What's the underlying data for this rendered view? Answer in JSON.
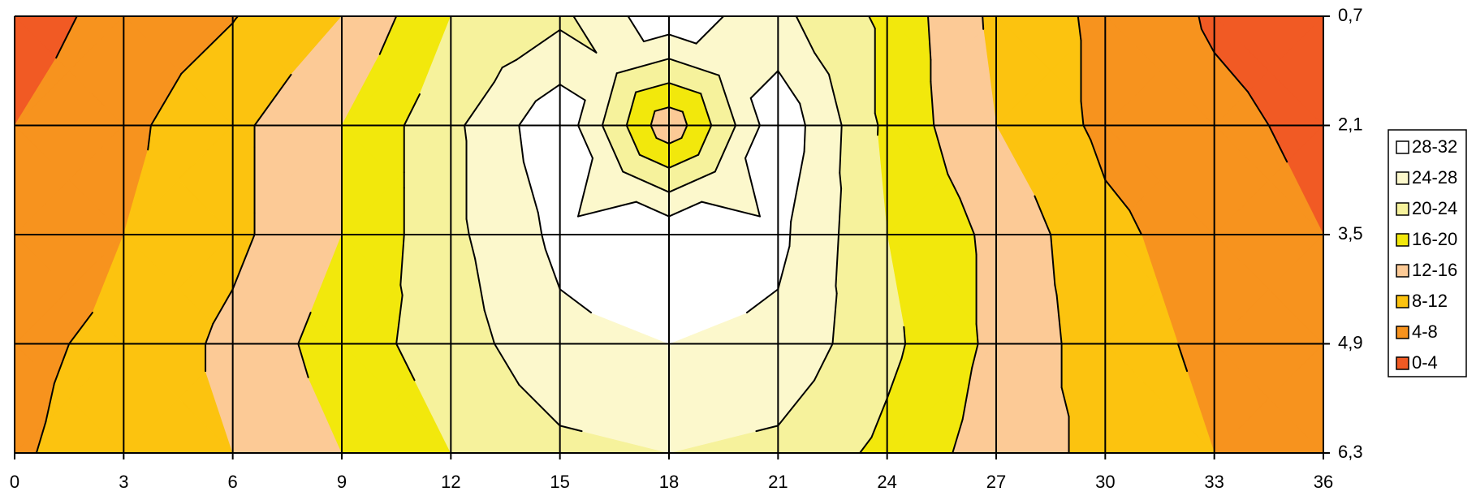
{
  "chart_data": {
    "type": "contour",
    "x": [
      0,
      3,
      6,
      9,
      12,
      15,
      18,
      21,
      24,
      27,
      30,
      33,
      36
    ],
    "y": [
      0.7,
      2.1,
      3.5,
      4.9,
      6.3
    ],
    "z": [
      [
        2,
        5.5,
        7.8,
        12,
        20,
        23,
        31,
        25,
        19,
        11,
        7,
        3.5,
        2
      ],
      [
        4,
        7,
        11,
        16,
        23,
        31,
        13,
        31,
        19,
        12,
        7,
        5,
        3
      ],
      [
        5,
        8,
        11,
        16,
        23,
        29,
        31,
        29,
        20,
        15,
        9,
        6,
        4
      ],
      [
        7,
        9,
        13,
        18,
        22,
        27,
        28,
        27,
        21,
        15,
        10,
        7,
        6
      ],
      [
        7.5,
        10,
        12,
        16,
        20,
        23,
        24,
        23,
        19,
        14,
        11,
        8,
        7
      ]
    ],
    "levels": [
      0,
      4,
      8,
      12,
      16,
      20,
      24,
      28,
      32
    ],
    "series": [
      {
        "name": "0-4",
        "color": "#f15a24"
      },
      {
        "name": "4-8",
        "color": "#f7931e"
      },
      {
        "name": "8-12",
        "color": "#fcc30f"
      },
      {
        "name": "12-16",
        "color": "#fcca96"
      },
      {
        "name": "16-20",
        "color": "#f2e80c"
      },
      {
        "name": "20-24",
        "color": "#f6f29c"
      },
      {
        "name": "24-28",
        "color": "#fcf8cc"
      },
      {
        "name": "28-32",
        "color": "#ffffff"
      }
    ],
    "xlim": [
      0,
      36
    ],
    "ylim": [
      0.7,
      6.3
    ],
    "xticks": [
      0,
      3,
      6,
      9,
      12,
      15,
      18,
      21,
      24,
      27,
      30,
      33,
      36
    ],
    "yticks": [
      {
        "value": 0.7,
        "label": "0,7"
      },
      {
        "value": 2.1,
        "label": "2,1"
      },
      {
        "value": 3.5,
        "label": "3,5"
      },
      {
        "value": 4.9,
        "label": "4,9"
      },
      {
        "value": 6.3,
        "label": "6,3"
      }
    ],
    "grid": true,
    "legend": "right"
  }
}
